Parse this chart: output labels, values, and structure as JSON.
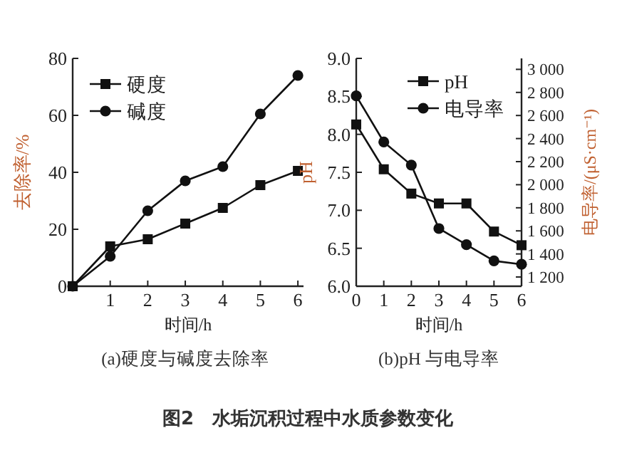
{
  "chart_data": [
    {
      "type": "line",
      "title": "(a)硬度与碱度去除率",
      "xlabel": "时间/h",
      "ylabel": "去除率/%",
      "legend": "top left",
      "line_style": "solid",
      "xlim": [
        0,
        6.15
      ],
      "xticks": [
        1,
        2,
        3,
        4,
        5,
        6
      ],
      "ylim": [
        0,
        80
      ],
      "yticks": [
        0,
        20,
        40,
        60,
        80
      ],
      "series": [
        {
          "name": "硬度",
          "color": "#111111",
          "marker": "square",
          "x": [
            0,
            1,
            2,
            3,
            4,
            5,
            6
          ],
          "values": [
            0,
            14,
            16.5,
            22,
            27.5,
            35.5,
            40.5
          ]
        },
        {
          "name": "碱度",
          "color": "#111111",
          "marker": "circle",
          "x": [
            0,
            1,
            2,
            3,
            4,
            5,
            6
          ],
          "values": [
            0,
            10.5,
            26.5,
            37,
            42,
            60.5,
            74
          ]
        }
      ],
      "annotations": [
        "图2　水垢沉积过程中水质参数变化"
      ]
    },
    {
      "type": "line",
      "title": "(b)pH 与电导率",
      "xlabel": "时间/h",
      "ylabel": "pH",
      "y2label": "电导率/(μS·cm⁻¹)",
      "legend": "top right",
      "line_style": "solid",
      "xlim": [
        0,
        6
      ],
      "xticks": [
        0,
        1,
        2,
        3,
        4,
        5,
        6
      ],
      "ylim": [
        6,
        9
      ],
      "yticks": [
        {
          "value": 6,
          "label": "6.0"
        },
        {
          "value": 6.5,
          "label": "6.5"
        },
        {
          "value": 7,
          "label": "7.0"
        },
        {
          "value": 7.5,
          "label": "7.5"
        },
        {
          "value": 8,
          "label": "8.0"
        },
        {
          "value": 8.5,
          "label": "8.5"
        },
        {
          "value": 9,
          "label": "9.0"
        }
      ],
      "y2lim": [
        1120,
        3095
      ],
      "y2ticks": [
        {
          "value": 1200,
          "label": "1 200"
        },
        {
          "value": 1400,
          "label": "1 400"
        },
        {
          "value": 1600,
          "label": "1 600"
        },
        {
          "value": 1800,
          "label": "1 800"
        },
        {
          "value": 2000,
          "label": "2 000"
        },
        {
          "value": 2200,
          "label": "2 200"
        },
        {
          "value": 2400,
          "label": "2 400"
        },
        {
          "value": 2600,
          "label": "2 600"
        },
        {
          "value": 2800,
          "label": "2 800"
        },
        {
          "value": 3000,
          "label": "3 000"
        }
      ],
      "series": [
        {
          "name": "pH",
          "color": "#111111",
          "marker": "square",
          "x": [
            0,
            1,
            2,
            3,
            4,
            5,
            6
          ],
          "values": [
            8.13,
            7.54,
            7.22,
            7.09,
            7.09,
            6.72,
            6.54
          ]
        },
        {
          "name": "电导率",
          "color": "#111111",
          "marker": "circle",
          "axis": "y2",
          "x": [
            0,
            1,
            2,
            3,
            4,
            5,
            6
          ],
          "values": [
            2770,
            2370,
            2170,
            1620,
            1480,
            1340,
            1310
          ]
        }
      ]
    }
  ]
}
